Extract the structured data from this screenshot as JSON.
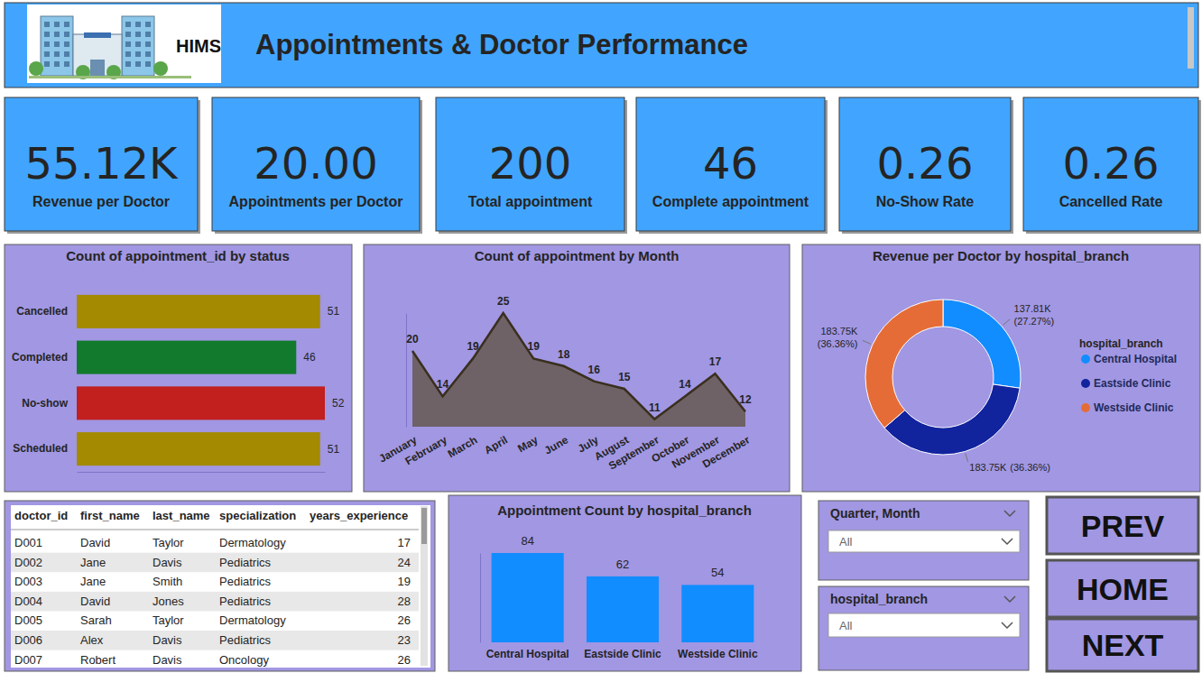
{
  "header": {
    "logo_text": "HIMS",
    "title": "Appointments & Doctor Performance"
  },
  "kpis": [
    {
      "value": "55.12K",
      "label": "Revenue per Doctor"
    },
    {
      "value": "20.00",
      "label": "Appointments per Doctor"
    },
    {
      "value": "200",
      "label": "Total appointment"
    },
    {
      "value": "46",
      "label": "Complete appointment"
    },
    {
      "value": "0.26",
      "label": "No-Show Rate"
    },
    {
      "value": "0.26",
      "label": "Cancelled Rate"
    }
  ],
  "chart_data": [
    {
      "type": "bar",
      "title": "Count of appointment_id by status",
      "orientation": "horizontal",
      "categories": [
        "Cancelled",
        "Completed",
        "No-show",
        "Scheduled"
      ],
      "values": [
        51,
        46,
        52,
        51
      ],
      "colors": [
        "#A38A00",
        "#127A2C",
        "#C21F1F",
        "#A38A00"
      ],
      "xlim": [
        0,
        52
      ],
      "data_labels": true,
      "tick_labels": "y"
    },
    {
      "type": "area",
      "title": "Count of appointment by Month",
      "categories": [
        "January",
        "February",
        "March",
        "April",
        "May",
        "June",
        "July",
        "August",
        "September",
        "October",
        "November",
        "December"
      ],
      "values": [
        20,
        14,
        19,
        25,
        19,
        18,
        16,
        15,
        11,
        14,
        17,
        12
      ],
      "color": "#6E6266",
      "ylim": [
        10,
        25
      ],
      "data_labels": true,
      "tick_labels": "x"
    },
    {
      "type": "donut",
      "title": "Revenue per Doctor by hospital_branch",
      "categories": [
        "Central Hospital",
        "Eastside Clinic",
        "Westside Clinic"
      ],
      "values": [
        137810,
        183750,
        183750
      ],
      "value_labels": [
        "137.81K",
        "183.75K",
        "183.75K"
      ],
      "percent_labels": [
        "(27.27%)",
        "(36.36%)",
        "(36.36%)"
      ],
      "colors": [
        "#118DFF",
        "#12239E",
        "#E66C37"
      ],
      "legend": "right",
      "legend_title": "hospital_branch",
      "data_labels": true
    },
    {
      "type": "bar",
      "title": "Appointment Count by hospital_branch",
      "categories": [
        "Central Hospital",
        "Eastside Clinic",
        "Westside Clinic"
      ],
      "values": [
        84,
        62,
        54
      ],
      "color": "#118DFF",
      "ylim": [
        0,
        84
      ],
      "data_labels": true,
      "tick_labels": "x"
    }
  ],
  "table": {
    "columns": [
      "doctor_id",
      "first_name",
      "last_name",
      "specialization",
      "years_experience"
    ],
    "rows": [
      [
        "D001",
        "David",
        "Taylor",
        "Dermatology",
        17
      ],
      [
        "D002",
        "Jane",
        "Davis",
        "Pediatrics",
        24
      ],
      [
        "D003",
        "Jane",
        "Smith",
        "Pediatrics",
        19
      ],
      [
        "D004",
        "David",
        "Jones",
        "Pediatrics",
        28
      ],
      [
        "D005",
        "Sarah",
        "Taylor",
        "Dermatology",
        26
      ],
      [
        "D006",
        "Alex",
        "Davis",
        "Pediatrics",
        23
      ],
      [
        "D007",
        "Robert",
        "Davis",
        "Oncology",
        26
      ]
    ]
  },
  "filters": [
    {
      "label": "Quarter, Month",
      "value": "All"
    },
    {
      "label": "hospital_branch",
      "value": "All"
    }
  ],
  "buttons": [
    "PREV",
    "HOME",
    "NEXT"
  ]
}
